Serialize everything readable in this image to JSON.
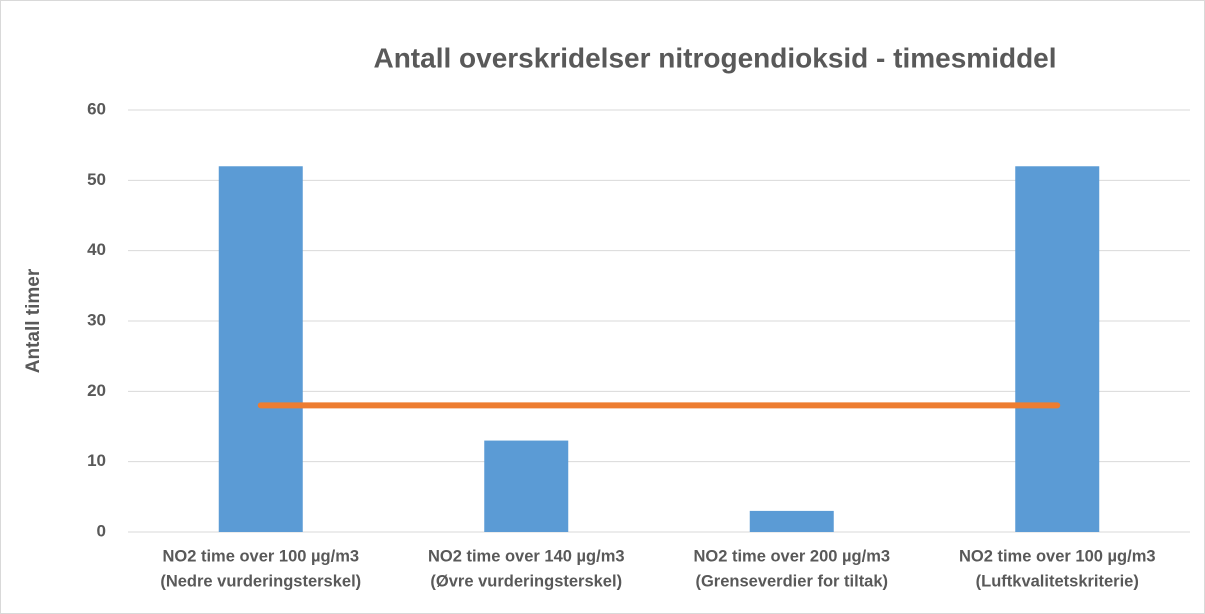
{
  "chart_data": {
    "type": "bar",
    "title": "Antall overskridelser nitrogendioksid - timesmiddel",
    "y_label": "Antall timer",
    "categories": [
      [
        "NO2 time over 100 µg/m3",
        "(Nedre vurderingsterskel)"
      ],
      [
        "NO2 time over 140 µg/m3",
        "(Øvre vurderingsterskel)"
      ],
      [
        "NO2 time over 200 µg/m3",
        "(Grenseverdier for tiltak)"
      ],
      [
        "NO2 time over 100 µg/m3",
        "(Luftkvalitetskriterie)"
      ]
    ],
    "series": [
      {
        "type": "bar",
        "color": "#5b9bd5",
        "values": [
          52,
          13,
          3,
          52
        ]
      },
      {
        "type": "line",
        "color": "#ed7d31",
        "values": [
          18,
          18,
          18,
          18
        ]
      }
    ],
    "ylim": [
      0,
      60
    ],
    "yticks": [
      0,
      10,
      20,
      30,
      40,
      50,
      60
    ],
    "grid": true
  }
}
